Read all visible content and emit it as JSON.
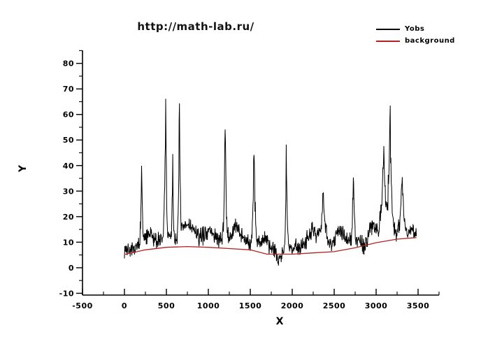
{
  "chart_data": {
    "type": "line",
    "title": "http://math-lab.ru/",
    "xlabel": "X",
    "ylabel": "Y",
    "xlim": [
      -500,
      3750
    ],
    "ylim": [
      -10.7,
      85.1
    ],
    "x_major_ticks": [
      -500,
      0,
      500,
      1000,
      1500,
      2000,
      2500,
      3000,
      3500
    ],
    "x_minor_step": 250,
    "y_major_ticks": [
      -10,
      0,
      10,
      20,
      30,
      40,
      50,
      60,
      70,
      80
    ],
    "y_minor_step": 5,
    "grid": false,
    "legend_position": "top-right",
    "axis_color": "#000000",
    "background_color": "#ffffff",
    "series": [
      {
        "name": "Yobs",
        "color": "#000000",
        "kind": "noisy-signal",
        "x_start": 0,
        "x_end": 3480,
        "sample_step": 4,
        "baseline_offset": 2.5,
        "noise_amplitude": 4.2,
        "peak_dropout": 0.35,
        "peaks": [
          {
            "x": 205,
            "h": 36,
            "w": 10
          },
          {
            "x": 490,
            "h": 64,
            "w": 12
          },
          {
            "x": 575,
            "h": 38,
            "w": 8
          },
          {
            "x": 655,
            "h": 62,
            "w": 10
          },
          {
            "x": 1200,
            "h": 56,
            "w": 12
          },
          {
            "x": 1545,
            "h": 48,
            "w": 13
          },
          {
            "x": 1930,
            "h": 53,
            "w": 9
          },
          {
            "x": 2370,
            "h": 24,
            "w": 28
          },
          {
            "x": 2730,
            "h": 36,
            "w": 11
          },
          {
            "x": 3090,
            "h": 38,
            "w": 26
          },
          {
            "x": 3165,
            "h": 58,
            "w": 18
          },
          {
            "x": 3310,
            "h": 30,
            "w": 18
          }
        ],
        "bumps": [
          {
            "x": 90,
            "h": -2,
            "w": 40
          },
          {
            "x": 300,
            "h": 3,
            "w": 50
          },
          {
            "x": 760,
            "h": 6,
            "w": 70
          },
          {
            "x": 1010,
            "h": 4,
            "w": 60
          },
          {
            "x": 1340,
            "h": 6,
            "w": 55
          },
          {
            "x": 1660,
            "h": 3,
            "w": 40
          },
          {
            "x": 1850,
            "h": -4,
            "w": 35
          },
          {
            "x": 2240,
            "h": 6,
            "w": 60
          },
          {
            "x": 2560,
            "h": 5,
            "w": 50
          },
          {
            "x": 2870,
            "h": -4,
            "w": 25
          },
          {
            "x": 2960,
            "h": 5,
            "w": 45
          }
        ]
      },
      {
        "name": "background",
        "color": "#b22222",
        "kind": "smooth-line",
        "points": [
          [
            0,
            5.2
          ],
          [
            250,
            7.0
          ],
          [
            500,
            8.0
          ],
          [
            750,
            8.3
          ],
          [
            1000,
            8.0
          ],
          [
            1250,
            7.5
          ],
          [
            1500,
            7.0
          ],
          [
            1700,
            5.3
          ],
          [
            2000,
            5.3
          ],
          [
            2250,
            5.8
          ],
          [
            2500,
            6.3
          ],
          [
            2750,
            7.8
          ],
          [
            3000,
            9.8
          ],
          [
            3250,
            11.2
          ],
          [
            3480,
            11.8
          ]
        ]
      }
    ]
  }
}
